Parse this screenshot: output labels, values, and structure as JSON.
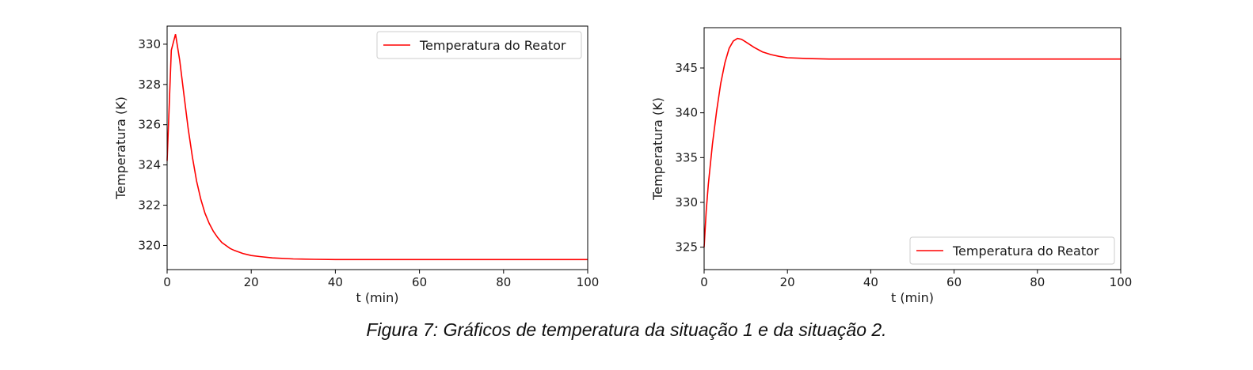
{
  "caption": "Figura 7: Gráficos de temperatura da situação 1 e da situação 2.",
  "chart_data": [
    {
      "type": "line",
      "xlabel": "t (min)",
      "ylabel": "Temperatura (K)",
      "xlim": [
        0,
        100
      ],
      "ylim": [
        318.8,
        330.9
      ],
      "xticks": [
        0,
        20,
        40,
        60,
        80,
        100
      ],
      "yticks": [
        320,
        322,
        324,
        326,
        328,
        330
      ],
      "grid": false,
      "legend_position": "upper right",
      "series": [
        {
          "name": "Temperatura do Reator",
          "color": "#ff0000",
          "x": [
            0,
            1,
            2,
            3,
            4,
            5,
            6,
            7,
            8,
            9,
            10,
            11,
            12,
            13,
            14,
            15,
            16,
            18,
            20,
            22,
            25,
            30,
            35,
            40,
            50,
            60,
            70,
            80,
            90,
            100
          ],
          "y": [
            324.2,
            329.7,
            330.5,
            329.2,
            327.5,
            325.8,
            324.4,
            323.2,
            322.3,
            321.6,
            321.1,
            320.7,
            320.4,
            320.15,
            320.0,
            319.85,
            319.75,
            319.6,
            319.5,
            319.45,
            319.38,
            319.33,
            319.31,
            319.3,
            319.3,
            319.3,
            319.3,
            319.3,
            319.3,
            319.3
          ]
        }
      ]
    },
    {
      "type": "line",
      "xlabel": "t (min)",
      "ylabel": "Temperatura (K)",
      "xlim": [
        0,
        100
      ],
      "ylim": [
        322.5,
        349.5
      ],
      "xticks": [
        0,
        20,
        40,
        60,
        80,
        100
      ],
      "yticks": [
        325,
        330,
        335,
        340,
        345
      ],
      "grid": false,
      "legend_position": "lower right",
      "series": [
        {
          "name": "Temperatura do Reator",
          "color": "#ff0000",
          "x": [
            0,
            0.5,
            1,
            2,
            3,
            4,
            5,
            6,
            7,
            8,
            9,
            10,
            12,
            14,
            16,
            18,
            20,
            25,
            30,
            40,
            50,
            60,
            70,
            80,
            90,
            100
          ],
          "y": [
            325.0,
            329.0,
            332.0,
            336.5,
            340.2,
            343.3,
            345.6,
            347.2,
            348.0,
            348.3,
            348.2,
            347.9,
            347.3,
            346.8,
            346.5,
            346.3,
            346.15,
            346.05,
            346.0,
            346.0,
            346.0,
            346.0,
            346.0,
            346.0,
            346.0,
            346.0
          ]
        }
      ]
    }
  ]
}
